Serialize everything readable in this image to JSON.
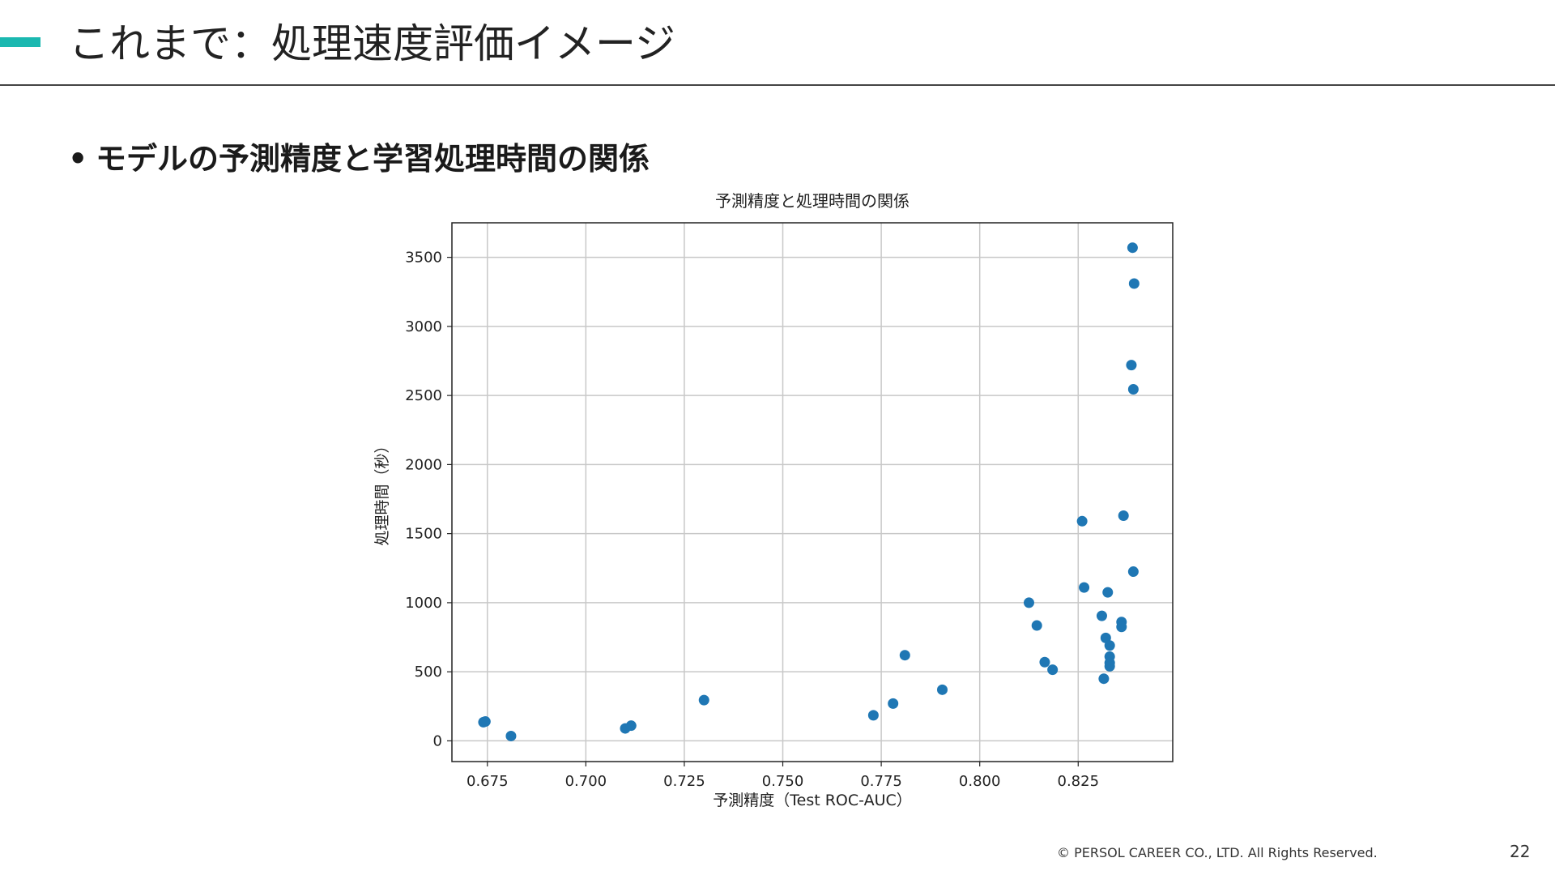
{
  "slide": {
    "title": "これまで：処理速度評価イメージ",
    "bullet": "モデルの予測精度と学習処理時間の関係",
    "bullet_marker": "•",
    "footer": "© PERSOL CAREER CO., LTD. All Rights Reserved.",
    "page_number": "22",
    "accent_color": "#1bb8b0"
  },
  "chart_data": {
    "type": "scatter",
    "title": "予測精度と処理時間の関係",
    "xlabel": "予測精度（Test ROC-AUC）",
    "ylabel": "処理時間（秒）",
    "xlim": [
      0.666,
      0.849
    ],
    "ylim": [
      -150,
      3750
    ],
    "xticks": [
      0.675,
      0.7,
      0.725,
      0.75,
      0.775,
      0.8,
      0.825
    ],
    "xtick_labels": [
      "0.675",
      "0.700",
      "0.725",
      "0.750",
      "0.775",
      "0.800",
      "0.825"
    ],
    "yticks": [
      0,
      500,
      1000,
      1500,
      2000,
      2500,
      3000,
      3500
    ],
    "ytick_labels": [
      "0",
      "500",
      "1000",
      "1500",
      "2000",
      "2500",
      "3000",
      "3500"
    ],
    "grid": true,
    "marker_color": "#1f77b4",
    "points": [
      {
        "x": 0.674,
        "y": 135
      },
      {
        "x": 0.6745,
        "y": 140
      },
      {
        "x": 0.681,
        "y": 35
      },
      {
        "x": 0.71,
        "y": 90
      },
      {
        "x": 0.7115,
        "y": 110
      },
      {
        "x": 0.73,
        "y": 295
      },
      {
        "x": 0.773,
        "y": 185
      },
      {
        "x": 0.778,
        "y": 270
      },
      {
        "x": 0.781,
        "y": 620
      },
      {
        "x": 0.7905,
        "y": 370
      },
      {
        "x": 0.8125,
        "y": 1000
      },
      {
        "x": 0.8145,
        "y": 835
      },
      {
        "x": 0.8165,
        "y": 570
      },
      {
        "x": 0.8185,
        "y": 515
      },
      {
        "x": 0.826,
        "y": 1590
      },
      {
        "x": 0.8265,
        "y": 1110
      },
      {
        "x": 0.831,
        "y": 905
      },
      {
        "x": 0.8315,
        "y": 450
      },
      {
        "x": 0.832,
        "y": 745
      },
      {
        "x": 0.8325,
        "y": 1075
      },
      {
        "x": 0.833,
        "y": 690
      },
      {
        "x": 0.833,
        "y": 610
      },
      {
        "x": 0.833,
        "y": 565
      },
      {
        "x": 0.833,
        "y": 540
      },
      {
        "x": 0.836,
        "y": 860
      },
      {
        "x": 0.836,
        "y": 825
      },
      {
        "x": 0.8365,
        "y": 1630
      },
      {
        "x": 0.8385,
        "y": 2720
      },
      {
        "x": 0.8388,
        "y": 3570
      },
      {
        "x": 0.839,
        "y": 1225
      },
      {
        "x": 0.839,
        "y": 2545
      },
      {
        "x": 0.8392,
        "y": 3310
      }
    ]
  }
}
